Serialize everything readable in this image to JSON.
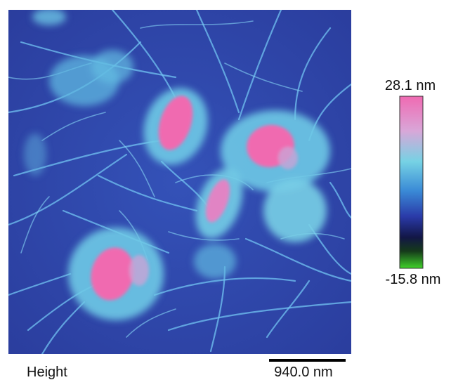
{
  "colorbar": {
    "max_label": "28.1 nm",
    "min_label": "-15.8 nm"
  },
  "channel": "Height",
  "scale_bar": {
    "label": "940.0 nm"
  }
}
